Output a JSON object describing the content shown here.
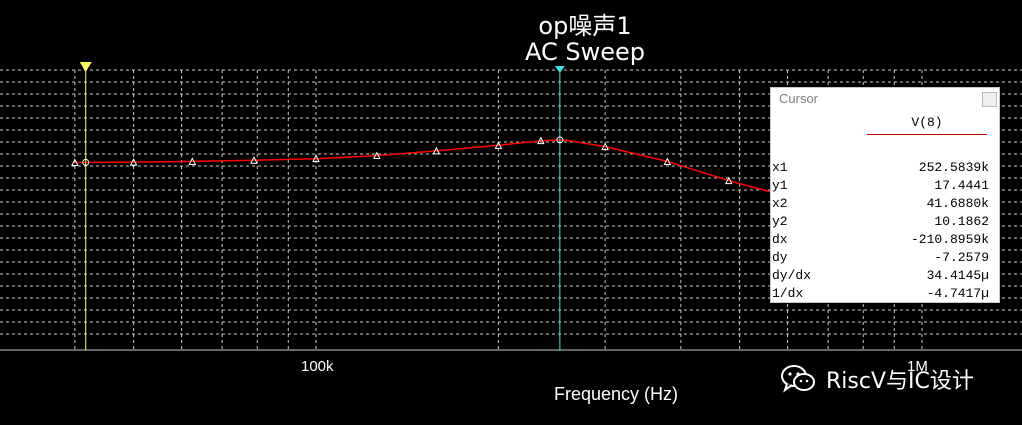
{
  "plot_title": "op噪声1",
  "plot_subtitle": "AC Sweep",
  "x_axis": {
    "label": "Frequency (Hz)",
    "tick_labels": [
      {
        "text": "100k",
        "hz": 100000
      },
      {
        "text": "1M",
        "hz": 1000000
      }
    ]
  },
  "colors": {
    "background": "#000000",
    "grid": "#c8c8c8",
    "trace": "#ff0000",
    "cursor1": "#40e0e0",
    "cursor2": "#ffff60",
    "marker": "#ffffff"
  },
  "chart_data": {
    "type": "line",
    "xscale": "log",
    "xlabel": "Frequency (Hz)",
    "series": [
      {
        "name": "V(8)",
        "x": [
          40000,
          41688,
          50000,
          62500,
          79000,
          100000,
          126000,
          158000,
          200000,
          235000,
          252584,
          260000,
          300000,
          380000,
          480000,
          620000
        ],
        "y": [
          10.15,
          10.1862,
          10.3,
          10.5,
          10.9,
          11.4,
          12.4,
          13.9,
          15.7,
          17.2,
          17.4441,
          17.3,
          15.3,
          10.5,
          4.3,
          -1.5
        ]
      }
    ],
    "markers_x": [
      40000,
      50000,
      62500,
      79000,
      100000,
      126000,
      158000,
      200000,
      235000,
      300000,
      380000,
      480000
    ]
  },
  "cursor_panel": {
    "title": "Cursor",
    "trace": "V(8)",
    "rows": [
      {
        "label": "x1",
        "value": "252.5839k"
      },
      {
        "label": "y1",
        "value": "17.4441"
      },
      {
        "label": "x2",
        "value": "41.6880k"
      },
      {
        "label": "y2",
        "value": "10.1862"
      },
      {
        "label": "dx",
        "value": "-210.8959k"
      },
      {
        "label": "dy",
        "value": "-7.2579"
      },
      {
        "label": "dy/dx",
        "value": "34.4145µ"
      },
      {
        "label": "1/dx",
        "value": "-4.7417µ"
      }
    ],
    "cursor1_x_hz": 252583.9,
    "cursor2_x_hz": 41688.0
  },
  "watermark": {
    "text": "RiscV与IC设计",
    "icon": "wechat-icon"
  }
}
